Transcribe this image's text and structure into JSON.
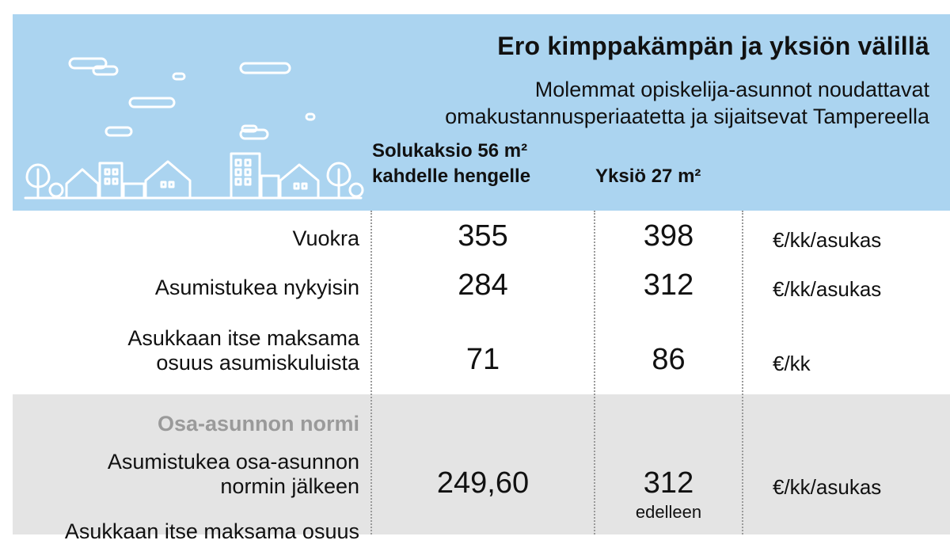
{
  "header": {
    "title": "Ero kimppakämpän ja yksiön välillä",
    "subtitle_line1": "Molemmat opiskelija-asunnot noudattavat",
    "subtitle_line2": "omakustannusperiaatetta ja sijaitsevat Tampereella",
    "illustration": "city-skyline-with-clouds-icon"
  },
  "columns": {
    "a_line1": "Solukaksio 56 m²",
    "a_line2": "kahdelle hengelle",
    "b": "Yksiö 27 m²"
  },
  "rows": [
    {
      "label_1": "Vuokra",
      "a": "355",
      "b": "398",
      "unit": "€/kk/asukas"
    },
    {
      "label_1": "Asumistukea nykyisin",
      "a": "284",
      "b": "312",
      "unit": "€/kk/asukas"
    },
    {
      "label_1": "Asukkaan itse maksama",
      "label_2": "osuus asumiskuluista",
      "a": "71",
      "b": "86",
      "unit": "€/kk"
    }
  ],
  "norm_section": {
    "heading": "Osa-asunnon normi",
    "row": {
      "label_1": "Asumistukea osa-asunnon",
      "label_2": "normin jälkeen",
      "a": "249,60",
      "b": "312",
      "b_note": "edelleen",
      "unit": "€/kk/asukas"
    },
    "partial_label": "Asukkaan itse maksama osuus"
  },
  "colors": {
    "header_bg": "#abd4f0",
    "norm_bg": "#e4e4e4",
    "heading_gray": "#9a9a9a",
    "illustration_stroke": "#ffffff"
  }
}
